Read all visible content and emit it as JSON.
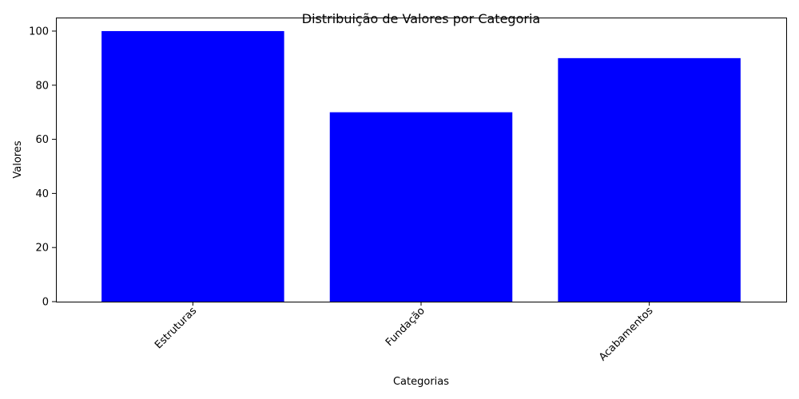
{
  "chart_data": {
    "type": "bar",
    "title": "Distribuição de Valores por Categoria",
    "xlabel": "Categorias",
    "ylabel": "Valores",
    "categories": [
      "Estruturas",
      "Fundação",
      "Acabamentos"
    ],
    "values": [
      100,
      70,
      90
    ],
    "ylim": [
      0,
      105
    ],
    "yticks": [
      "0",
      "20",
      "40",
      "60",
      "80",
      "100"
    ],
    "bar_color": "#0000ff",
    "xtick_rotation": 45,
    "grid": false,
    "legend": false
  }
}
